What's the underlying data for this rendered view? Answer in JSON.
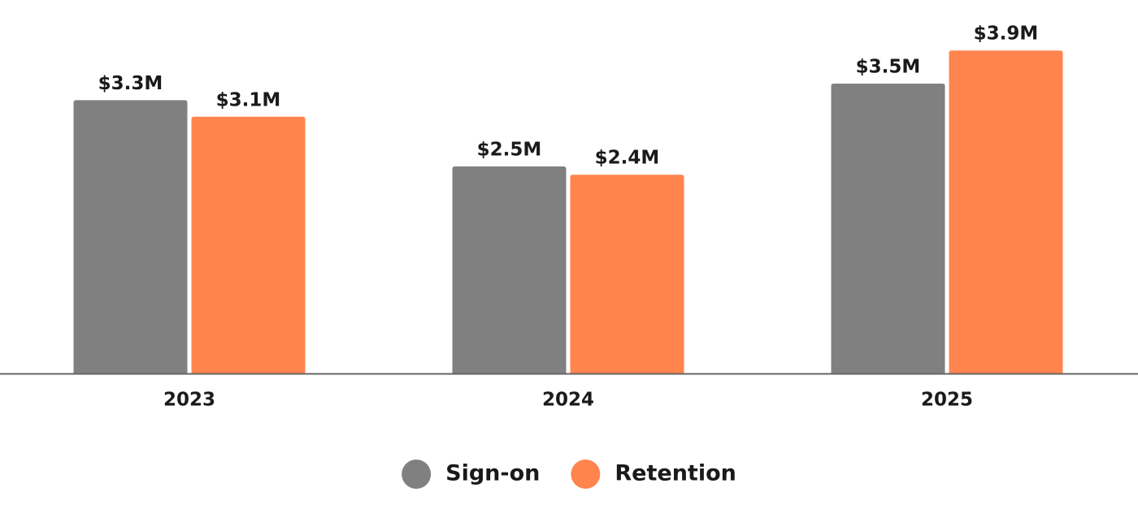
{
  "chart_data": {
    "type": "bar",
    "categories": [
      "2023",
      "2024",
      "2025"
    ],
    "series": [
      {
        "name": "Sign-on",
        "color": "#808080",
        "values": [
          3.3,
          2.5,
          3.5
        ],
        "value_labels": [
          "$3.3M",
          "$2.5M",
          "$3.5M"
        ]
      },
      {
        "name": "Retention",
        "color": "#ff844d",
        "values": [
          3.1,
          2.4,
          3.9
        ],
        "value_labels": [
          "$3.1M",
          "$2.4M",
          "$3.9M"
        ]
      }
    ],
    "legend": "bottom"
  }
}
